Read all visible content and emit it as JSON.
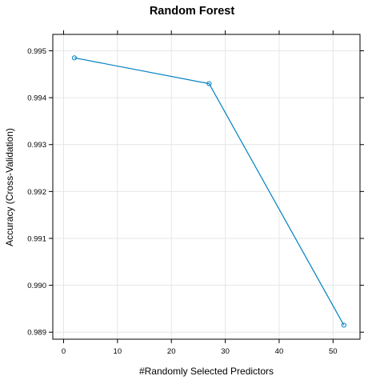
{
  "chart_data": {
    "type": "line",
    "title": "Random Forest",
    "xlabel": "#Randomly Selected Predictors",
    "ylabel": "Accuracy (Cross-Validation)",
    "xlim": [
      -2,
      55
    ],
    "ylim": [
      0.98885,
      0.99535
    ],
    "x_ticks": [
      0,
      10,
      20,
      30,
      40,
      50
    ],
    "y_ticks": [
      "0.989",
      "0.990",
      "0.991",
      "0.992",
      "0.993",
      "0.994",
      "0.995"
    ],
    "grid": true,
    "series": [
      {
        "x": [
          2,
          27,
          52
        ],
        "y": [
          0.99485,
          0.9943,
          0.98915
        ],
        "color": "#0080c0"
      }
    ]
  }
}
